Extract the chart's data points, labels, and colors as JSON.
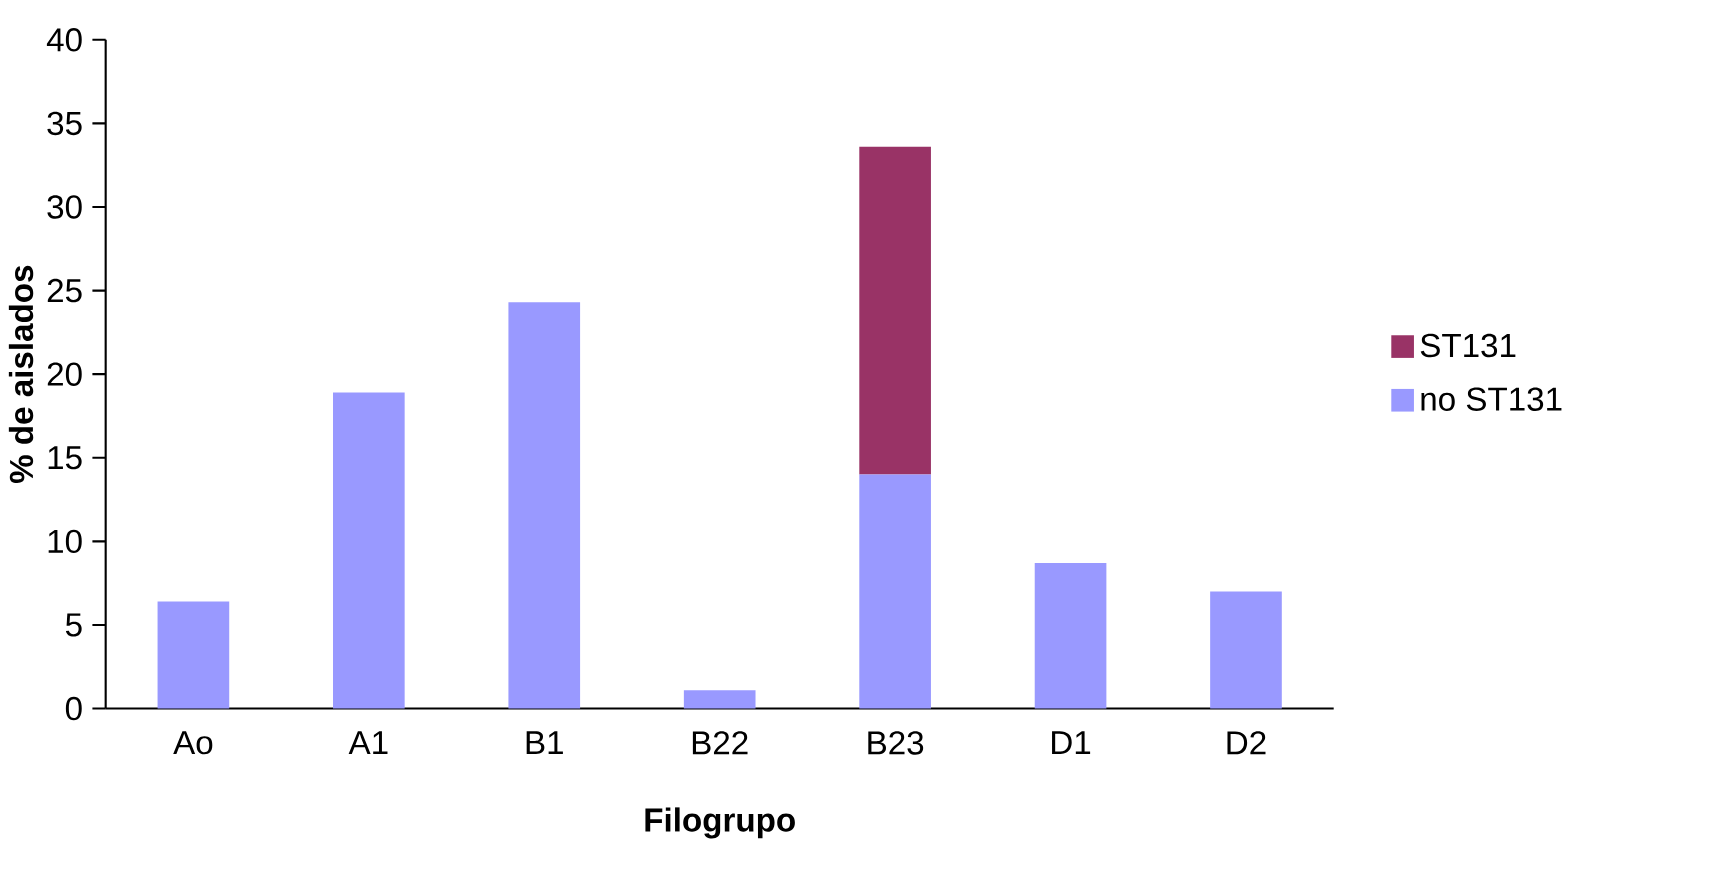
{
  "chart_data": {
    "type": "bar",
    "stacked": true,
    "xlabel": "Filogrupo",
    "ylabel": "% de aislados",
    "categories": [
      "Ao",
      "A1",
      "B1",
      "B22",
      "B23",
      "D1",
      "D2"
    ],
    "series": [
      {
        "name": "no ST131",
        "color": "#9999ff",
        "values": [
          6.4,
          18.9,
          24.3,
          1.1,
          14.0,
          8.7,
          7.0
        ]
      },
      {
        "name": "ST131",
        "color": "#993366",
        "values": [
          null,
          null,
          null,
          null,
          19.6,
          null,
          null
        ]
      }
    ],
    "ylim": [
      0,
      40
    ],
    "yticks": [
      0,
      5,
      10,
      15,
      20,
      25,
      30,
      35,
      40
    ],
    "grid": false,
    "legend": "right"
  }
}
